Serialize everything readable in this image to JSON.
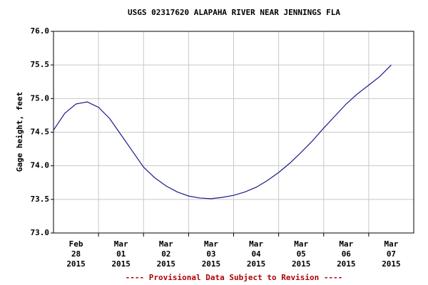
{
  "chart_data": {
    "type": "line",
    "title": "USGS 02317620 ALAPAHA RIVER NEAR JENNINGS FLA",
    "y_label": "Gage height, feet",
    "footer": "---- Provisional Data Subject to Revision ----",
    "x": [
      0,
      0.25,
      0.5,
      0.75,
      1,
      1.25,
      1.5,
      1.75,
      2,
      2.25,
      2.5,
      2.75,
      3,
      3.25,
      3.5,
      3.75,
      4,
      4.25,
      4.5,
      4.75,
      5,
      5.25,
      5.5,
      5.75,
      6,
      6.25,
      6.5,
      6.75,
      7,
      7.25,
      7.5
    ],
    "series": [
      {
        "color": "#1a1a8c",
        "values": [
          74.53,
          74.78,
          74.92,
          74.95,
          74.87,
          74.7,
          74.46,
          74.22,
          73.98,
          73.82,
          73.7,
          73.61,
          73.55,
          73.52,
          73.51,
          73.53,
          73.56,
          73.61,
          73.68,
          73.78,
          73.9,
          74.04,
          74.2,
          74.37,
          74.56,
          74.74,
          74.92,
          75.07,
          75.2,
          75.33,
          75.5
        ]
      }
    ],
    "xlim": [
      0,
      8
    ],
    "xgrid": [
      1,
      2,
      3,
      4,
      5,
      6,
      7
    ],
    "xticks": [
      {
        "value": 0.5,
        "label": [
          "Feb",
          "28",
          "2015"
        ]
      },
      {
        "value": 1.5,
        "label": [
          "Mar",
          "01",
          "2015"
        ]
      },
      {
        "value": 2.5,
        "label": [
          "Mar",
          "02",
          "2015"
        ]
      },
      {
        "value": 3.5,
        "label": [
          "Mar",
          "03",
          "2015"
        ]
      },
      {
        "value": 4.5,
        "label": [
          "Mar",
          "04",
          "2015"
        ]
      },
      {
        "value": 5.5,
        "label": [
          "Mar",
          "05",
          "2015"
        ]
      },
      {
        "value": 6.5,
        "label": [
          "Mar",
          "06",
          "2015"
        ]
      },
      {
        "value": 7.5,
        "label": [
          "Mar",
          "07",
          "2015"
        ]
      }
    ],
    "ylim": [
      73,
      76
    ],
    "yticks": [
      {
        "value": 73,
        "label": "73.0"
      },
      73.5,
      {
        "value": 74,
        "label": "74.0"
      },
      74.5,
      {
        "value": 75,
        "label": "75.0"
      },
      75.5,
      {
        "value": 76,
        "label": "76.0"
      }
    ],
    "grid": true
  }
}
